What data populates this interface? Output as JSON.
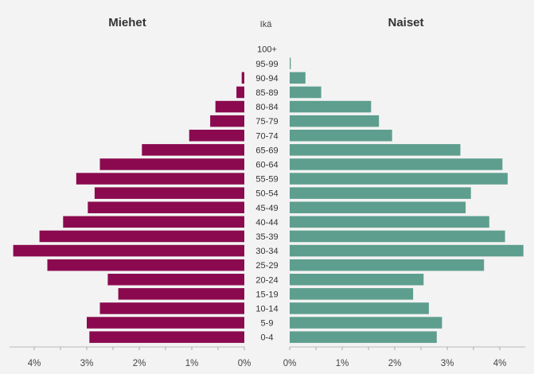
{
  "chart_data": {
    "type": "bar",
    "orientation": "horizontal",
    "layout": "population-pyramid",
    "left_title": "Miehet",
    "right_title": "Naiset",
    "center_title": "Ikä",
    "categories": [
      "100+",
      "95-99",
      "90-94",
      "85-89",
      "80-84",
      "75-79",
      "70-74",
      "65-69",
      "60-64",
      "55-59",
      "50-54",
      "45-49",
      "40-44",
      "35-39",
      "30-34",
      "25-29",
      "20-24",
      "15-19",
      "10-14",
      "5-9",
      "0-4"
    ],
    "series": [
      {
        "name": "Miehet",
        "color": "#8b0a4f",
        "values": [
          0,
          0,
          0.05,
          0.15,
          0.55,
          0.65,
          1.05,
          1.95,
          2.75,
          3.2,
          2.85,
          2.98,
          3.45,
          3.9,
          4.4,
          3.75,
          2.6,
          2.4,
          2.75,
          3.0,
          2.95
        ]
      },
      {
        "name": "Naiset",
        "color": "#5e9e8f",
        "values": [
          0,
          0.02,
          0.3,
          0.6,
          1.55,
          1.7,
          1.95,
          3.25,
          4.05,
          4.15,
          3.45,
          3.35,
          3.8,
          4.1,
          4.45,
          3.7,
          2.55,
          2.35,
          2.65,
          2.9,
          2.8
        ]
      }
    ],
    "left_ticks": [
      "4%",
      "3%",
      "2%",
      "1%",
      "0%"
    ],
    "left_tick_values": [
      4,
      3,
      2,
      1,
      0
    ],
    "right_ticks": [
      "0%",
      "1%",
      "2%",
      "3%",
      "4%"
    ],
    "right_tick_values": [
      0,
      1,
      2,
      3,
      4
    ],
    "xlim": [
      0,
      4.5
    ],
    "unit": "%",
    "grid": false,
    "legend": "none"
  }
}
